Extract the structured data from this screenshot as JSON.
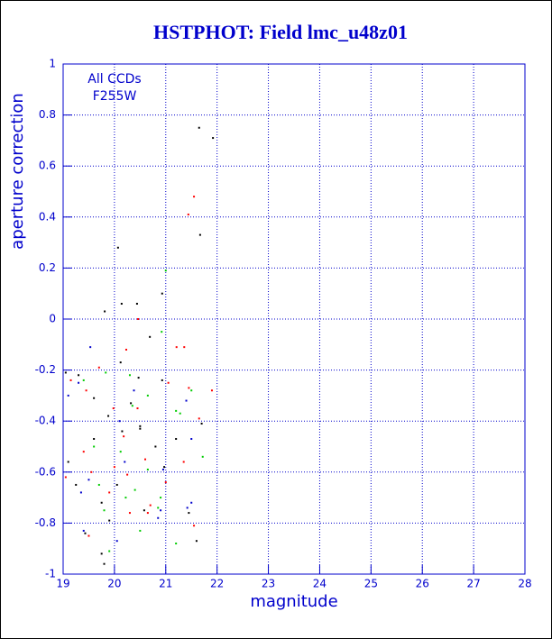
{
  "chart_data": {
    "type": "scatter",
    "title": "HSTPHOT: Field lmc_u48z01",
    "xlabel": "magnitude",
    "ylabel": "aperture correction",
    "annotations": [
      "All CCDs",
      "F255W"
    ],
    "xlim": [
      19,
      28
    ],
    "ylim": [
      -1,
      1
    ],
    "xticks": [
      19,
      20,
      21,
      22,
      23,
      24,
      25,
      26,
      27,
      28
    ],
    "yticks": [
      -1,
      -0.8,
      -0.6,
      -0.4,
      -0.2,
      0,
      0.2,
      0.4,
      0.6,
      0.8,
      1
    ],
    "grid": true,
    "series": [
      {
        "color": "#000000",
        "x": [
          21.65,
          21.92,
          21.67,
          20.07,
          20.93,
          20.44,
          20.14,
          19.81,
          20.69,
          20.12,
          19.05,
          19.3,
          20.47,
          20.93,
          19.6,
          20.32,
          19.88,
          20.5,
          21.7,
          20.15,
          19.6,
          21.2,
          20.8,
          19.1,
          20.97,
          19.25,
          20.05,
          19.75,
          20.58,
          21.45,
          19.9,
          19.43,
          19.75,
          21.6,
          19.8,
          20.5
        ],
        "values": [
          0.75,
          0.71,
          0.33,
          0.28,
          0.1,
          0.06,
          0.06,
          0.03,
          -0.07,
          -0.17,
          -0.21,
          -0.22,
          -0.23,
          -0.24,
          -0.31,
          -0.33,
          -0.38,
          -0.42,
          -0.41,
          -0.44,
          -0.47,
          -0.47,
          -0.5,
          -0.56,
          -0.58,
          -0.65,
          -0.65,
          -0.72,
          -0.75,
          -0.76,
          -0.79,
          -0.84,
          -0.92,
          -0.87,
          -0.96,
          -0.43
        ]
      },
      {
        "color": "#ff0000",
        "x": [
          21.55,
          21.44,
          20.46,
          21.21,
          21.36,
          20.23,
          19.7,
          19.15,
          19.45,
          21.05,
          21.45,
          21.9,
          19.98,
          20.45,
          21.65,
          20.18,
          19.4,
          20.6,
          21.35,
          19.55,
          20.25,
          19.05,
          21.0,
          19.9,
          20.7,
          20.3,
          19.5,
          20.65,
          21.55,
          20.0
        ],
        "values": [
          0.48,
          0.41,
          0.0,
          -0.11,
          -0.11,
          -0.12,
          -0.19,
          -0.24,
          -0.28,
          -0.25,
          -0.27,
          -0.28,
          -0.35,
          -0.35,
          -0.39,
          -0.46,
          -0.52,
          -0.55,
          -0.56,
          -0.6,
          -0.61,
          -0.62,
          -0.64,
          -0.68,
          -0.73,
          -0.76,
          -0.85,
          -0.76,
          -0.81,
          -0.58
        ]
      },
      {
        "color": "#00cc00",
        "x": [
          21.0,
          20.92,
          19.83,
          20.3,
          20.65,
          19.4,
          21.5,
          21.28,
          19.6,
          20.35,
          21.2,
          21.72,
          20.12,
          20.65,
          19.7,
          20.4,
          20.22,
          20.9,
          19.8,
          21.2,
          20.85,
          19.9,
          20.5
        ],
        "values": [
          0.19,
          -0.05,
          -0.21,
          -0.22,
          -0.3,
          -0.24,
          -0.28,
          -0.37,
          -0.5,
          -0.34,
          -0.36,
          -0.54,
          -0.52,
          -0.59,
          -0.65,
          -0.67,
          -0.7,
          -0.7,
          -0.75,
          -0.88,
          -0.74,
          -0.91,
          -0.83
        ]
      },
      {
        "color": "#0000cc",
        "x": [
          19.53,
          19.3,
          20.38,
          21.4,
          19.1,
          20.1,
          21.5,
          19.5,
          20.95,
          20.2,
          19.35,
          21.5,
          21.42,
          20.9,
          20.85,
          19.4,
          20.05
        ],
        "values": [
          -0.11,
          -0.25,
          -0.28,
          -0.32,
          -0.3,
          -0.4,
          -0.47,
          -0.63,
          -0.59,
          -0.56,
          -0.68,
          -0.72,
          -0.74,
          -0.75,
          -0.78,
          -0.83,
          -0.87
        ]
      }
    ]
  }
}
